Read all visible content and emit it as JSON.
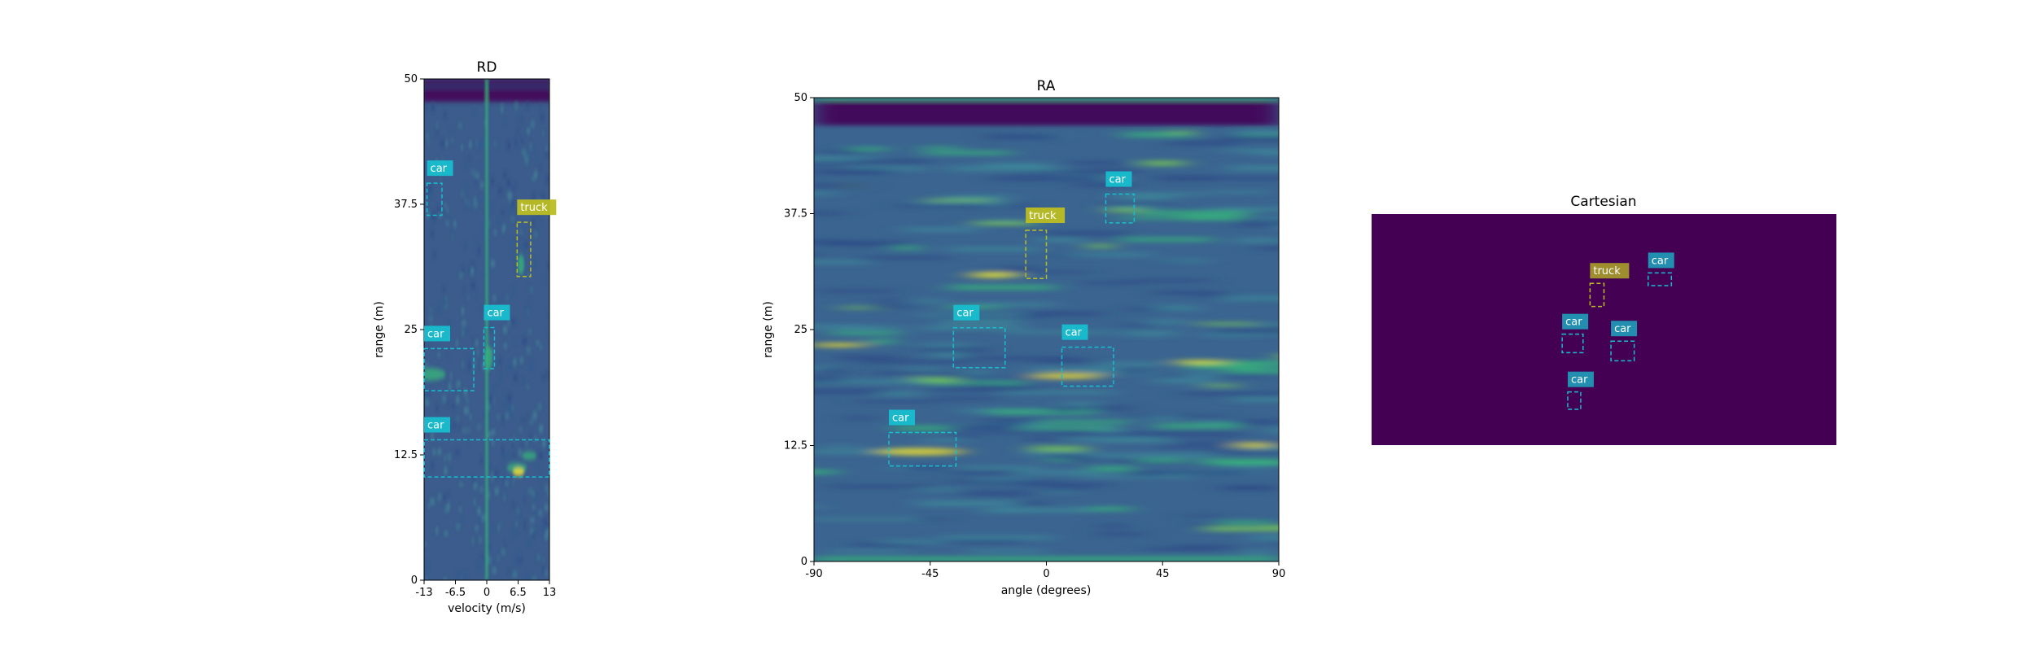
{
  "colors": {
    "car": "#17becf",
    "truck": "#bcbd22",
    "map_dark": "#440154",
    "map_mid": "#31688e",
    "map_bright": "#35b779",
    "map_peak": "#fde725"
  },
  "chart_data": [
    {
      "type": "heatmap",
      "title": "RD",
      "xlabel": "velocity (m/s)",
      "ylabel": "range (m)",
      "xlim": [
        -13,
        13
      ],
      "ylim": [
        0,
        50
      ],
      "x_ticks": [
        "-13",
        "-6.5",
        "0",
        "6.5",
        "13"
      ],
      "y_ticks": [
        "0",
        "12.5",
        "25",
        "37.5",
        "50"
      ],
      "grid": false,
      "detections": [
        {
          "label": "car",
          "class": "car",
          "x": [
            -13,
            -2.7
          ],
          "y": [
            18.9,
            23.1
          ]
        },
        {
          "label": "car",
          "class": "car",
          "x": [
            -12.4,
            -9.3
          ],
          "y": [
            36.4,
            39.6
          ]
        },
        {
          "label": "car",
          "class": "car",
          "x": [
            -0.6,
            1.6
          ],
          "y": [
            21.1,
            25.2
          ]
        },
        {
          "label": "truck",
          "class": "truck",
          "x": [
            6.3,
            9.1
          ],
          "y": [
            30.3,
            35.7
          ]
        },
        {
          "label": "car",
          "class": "car",
          "x": [
            -13,
            13
          ],
          "y": [
            10.3,
            14.0
          ]
        }
      ]
    },
    {
      "type": "heatmap",
      "title": "RA",
      "xlabel": "angle (degrees)",
      "ylabel": "range (m)",
      "xlim": [
        -90,
        90
      ],
      "ylim": [
        0,
        50
      ],
      "x_ticks": [
        "-90",
        "-45",
        "0",
        "45",
        "90"
      ],
      "y_ticks": [
        "0",
        "12.5",
        "25",
        "37.5",
        "50"
      ],
      "grid": false,
      "detections": [
        {
          "label": "car",
          "class": "car",
          "x": [
            -61,
            -35
          ],
          "y": [
            10.3,
            13.9
          ]
        },
        {
          "label": "car",
          "class": "car",
          "x": [
            -36,
            -16
          ],
          "y": [
            20.9,
            25.2
          ]
        },
        {
          "label": "truck",
          "class": "truck",
          "x": [
            -8,
            0
          ],
          "y": [
            30.5,
            35.7
          ]
        },
        {
          "label": "car",
          "class": "car",
          "x": [
            6,
            26
          ],
          "y": [
            18.9,
            23.1
          ]
        },
        {
          "label": "car",
          "class": "car",
          "x": [
            23,
            34
          ],
          "y": [
            36.5,
            39.6
          ]
        }
      ]
    },
    {
      "type": "heatmap",
      "title": "Cartesian",
      "xlabel": "",
      "ylabel": "",
      "grid": false,
      "detections": [
        {
          "label": "truck",
          "class": "truck",
          "x": [
            0.47,
            0.5
          ],
          "y": [
            0.3,
            0.4
          ]
        },
        {
          "label": "car",
          "class": "car",
          "x": [
            0.595,
            0.645
          ],
          "y": [
            0.255,
            0.31
          ]
        },
        {
          "label": "car",
          "class": "car",
          "x": [
            0.41,
            0.455
          ],
          "y": [
            0.52,
            0.6
          ]
        },
        {
          "label": "car",
          "class": "car",
          "x": [
            0.515,
            0.565
          ],
          "y": [
            0.55,
            0.635
          ]
        },
        {
          "label": "car",
          "class": "car",
          "x": [
            0.422,
            0.45
          ],
          "y": [
            0.77,
            0.845
          ]
        }
      ]
    }
  ]
}
